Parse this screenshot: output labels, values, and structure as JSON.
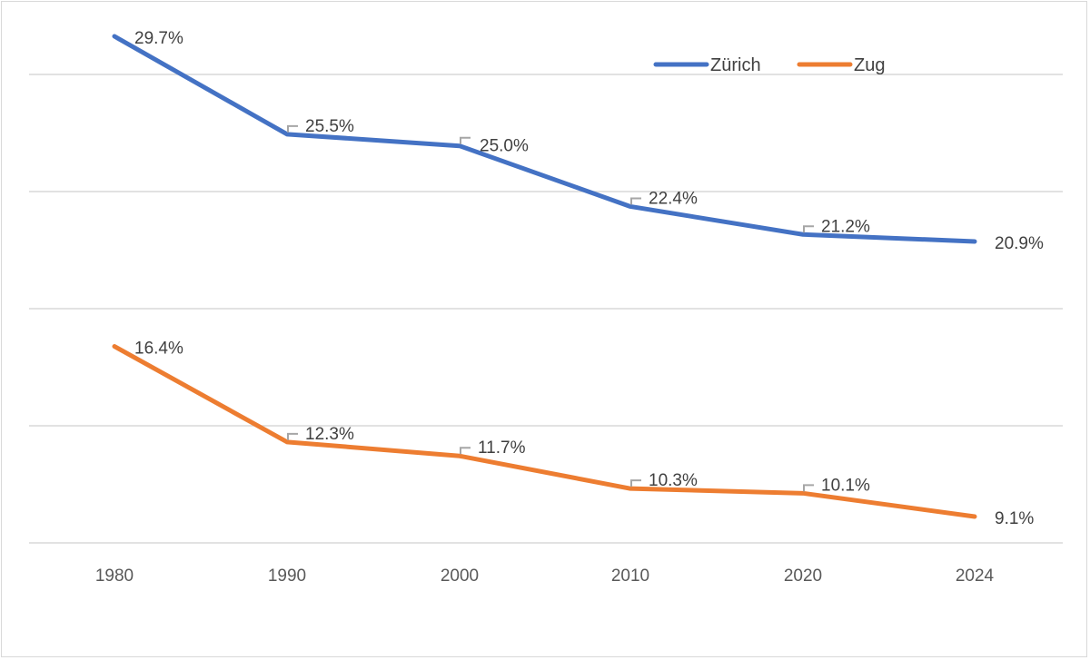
{
  "chart_data": {
    "type": "line",
    "categories": [
      "1980",
      "1990",
      "2000",
      "2010",
      "2020",
      "2024"
    ],
    "series": [
      {
        "name": "Zürich",
        "color": "#4472C4",
        "values": [
          29.7,
          25.5,
          25.0,
          22.4,
          21.2,
          20.9
        ],
        "labels": [
          "29.7%",
          "25.5%",
          "25.0%",
          "22.4%",
          "21.2%",
          "20.9%"
        ]
      },
      {
        "name": "Zug",
        "color": "#ED7D31",
        "values": [
          16.4,
          12.3,
          11.7,
          10.3,
          10.1,
          9.1
        ],
        "labels": [
          "16.4%",
          "12.3%",
          "11.7%",
          "10.3%",
          "10.1%",
          "9.1%"
        ]
      }
    ],
    "ylim": [
      8.0,
      28.0
    ],
    "grid": true,
    "legend": "top-right",
    "title": "",
    "xlabel": "",
    "ylabel": ""
  }
}
